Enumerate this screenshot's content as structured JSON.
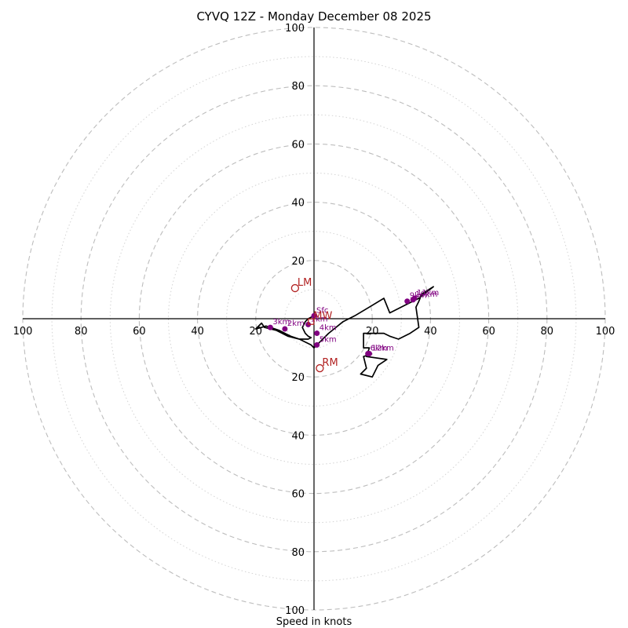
{
  "chart_data": {
    "type": "hodograph",
    "title": "CYVQ 12Z - Monday December 08 2025",
    "xlabel": "Speed in knots",
    "units": "knots",
    "max_speed": 100,
    "ring_major_step": 20,
    "ring_minor_step": 10,
    "tick_values": [
      20,
      40,
      60,
      80,
      100
    ],
    "ticks": {
      "right": [
        "20",
        "40",
        "60",
        "80",
        "100"
      ],
      "left": [
        "20",
        "40",
        "60",
        "80",
        "100"
      ],
      "up": [
        "20",
        "40",
        "60",
        "80",
        "100"
      ],
      "down": [
        "20",
        "40",
        "60",
        "80",
        "100"
      ]
    },
    "trace": [
      [
        0,
        1
      ],
      [
        -2,
        0
      ],
      [
        -3,
        -1
      ],
      [
        -4,
        -3
      ],
      [
        -3,
        -5
      ],
      [
        -2,
        -6
      ],
      [
        -1,
        -6.5
      ],
      [
        -2,
        -7
      ],
      [
        -5,
        -7
      ],
      [
        -8,
        -6
      ],
      [
        -10,
        -5
      ],
      [
        -12,
        -4
      ],
      [
        -15,
        -3
      ],
      [
        -16.5,
        -2.5
      ],
      [
        -18,
        -3
      ],
      [
        -20,
        -3.5
      ],
      [
        -18,
        -1.5
      ],
      [
        -17,
        -3
      ],
      [
        -13,
        -4
      ],
      [
        -9,
        -6
      ],
      [
        -5,
        -7
      ],
      [
        -3,
        -8
      ],
      [
        -1,
        -9
      ],
      [
        0,
        -10
      ],
      [
        2,
        -8
      ],
      [
        5,
        -5
      ],
      [
        10,
        -1
      ],
      [
        14,
        1
      ],
      [
        19,
        4
      ],
      [
        24,
        7
      ],
      [
        26,
        2
      ],
      [
        32,
        5
      ],
      [
        36,
        7
      ],
      [
        41,
        11
      ],
      [
        37,
        8.5
      ],
      [
        36,
        6
      ],
      [
        35,
        4
      ],
      [
        36,
        -3
      ],
      [
        33,
        -5
      ],
      [
        29,
        -7
      ],
      [
        26,
        -6
      ],
      [
        24,
        -5
      ],
      [
        17,
        -5
      ],
      [
        17,
        -10
      ],
      [
        19,
        -10
      ],
      [
        18,
        -13
      ],
      [
        25,
        -14
      ],
      [
        22,
        -16
      ],
      [
        20,
        -20
      ],
      [
        16,
        -19
      ],
      [
        18,
        -17
      ],
      [
        17,
        -13
      ],
      [
        20,
        -12
      ]
    ],
    "height_markers": [
      {
        "label": "Sfc",
        "u": 0,
        "v": 1
      },
      {
        "label": "1km",
        "u": -2,
        "v": -2
      },
      {
        "label": "2km",
        "u": -10,
        "v": -3.5
      },
      {
        "label": "3km",
        "u": -15,
        "v": -3
      },
      {
        "label": "4km",
        "u": 1,
        "v": -5
      },
      {
        "label": "5km",
        "u": 1,
        "v": -9
      },
      {
        "label": "6km",
        "u": 18.5,
        "v": -12
      },
      {
        "label": "9km",
        "u": 32,
        "v": 6
      },
      {
        "label": "10km",
        "u": 34,
        "v": 6.5
      },
      {
        "label": "11km",
        "u": 34.5,
        "v": 7
      },
      {
        "label": "12km",
        "u": 19,
        "v": -12
      }
    ],
    "storm_motion": [
      {
        "label": "LM",
        "u": -6.5,
        "v": 10.5
      },
      {
        "label": "RM",
        "u": 2,
        "v": -17
      },
      {
        "label": "MW",
        "u": -1,
        "v": -1
      }
    ]
  }
}
